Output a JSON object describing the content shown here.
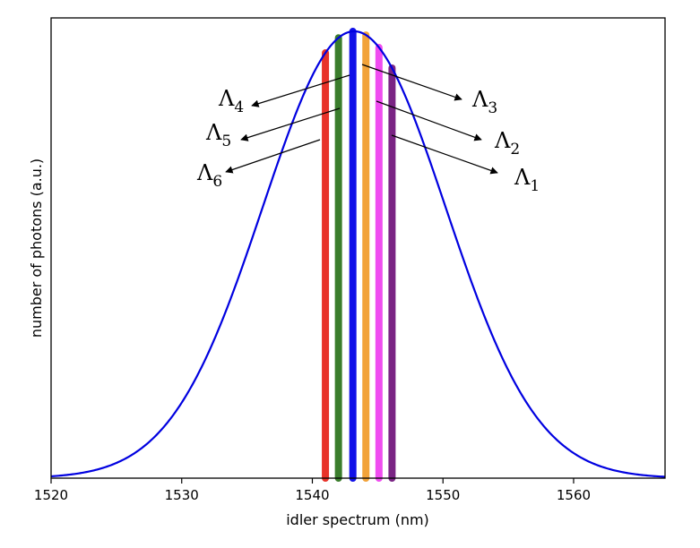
{
  "chart_data": {
    "type": "line",
    "xlabel": "idler spectrum (nm)",
    "ylabel": "number of photons (a.u.)",
    "xlim": [
      1520,
      1567
    ],
    "ylim": [
      0,
      1.03
    ],
    "x_ticks": [
      1520,
      1530,
      1540,
      1550,
      1560
    ],
    "y_ticks_shown": false,
    "grid": false,
    "curve": {
      "shape": "gaussian",
      "center": 1543.2,
      "sigma": 7.0,
      "peak": 1.0,
      "color": "#0000e0"
    },
    "series": [
      {
        "x": [
          1520.0,
          1522.0,
          1524.0,
          1526.0,
          1528.0,
          1530.0,
          1532.0,
          1534.0,
          1536.0,
          1538.0,
          1540.0,
          1542.0,
          1543.2,
          1544.0,
          1546.0,
          1548.0,
          1550.0,
          1552.0,
          1554.0,
          1556.0,
          1558.0,
          1560.0,
          1562.0,
          1564.0,
          1567.0
        ],
        "y": [
          0.004,
          0.01,
          0.025,
          0.054,
          0.105,
          0.185,
          0.297,
          0.436,
          0.592,
          0.743,
          0.901,
          0.985,
          1.0,
          0.993,
          0.923,
          0.79,
          0.624,
          0.454,
          0.304,
          0.187,
          0.106,
          0.056,
          0.027,
          0.012,
          0.003
        ]
      }
    ],
    "bands": [
      {
        "name": "Λ6",
        "x": 1541.0,
        "color": "#e8332a"
      },
      {
        "name": "Λ5",
        "x": 1542.0,
        "color": "#3a7d2c"
      },
      {
        "name": "Λ4",
        "x": 1543.1,
        "color": "#1010e8"
      },
      {
        "name": "Λ3",
        "x": 1544.1,
        "color": "#f2a33a"
      },
      {
        "name": "Λ2",
        "x": 1545.1,
        "color": "#f04cf0"
      },
      {
        "name": "Λ1",
        "x": 1546.1,
        "color": "#7a2484"
      }
    ],
    "annotations": [
      {
        "sym": "Λ",
        "sub": "4",
        "side": "left"
      },
      {
        "sym": "Λ",
        "sub": "5",
        "side": "left"
      },
      {
        "sym": "Λ",
        "sub": "6",
        "side": "left"
      },
      {
        "sym": "Λ",
        "sub": "3",
        "side": "right"
      },
      {
        "sym": "Λ",
        "sub": "2",
        "side": "right"
      },
      {
        "sym": "Λ",
        "sub": "1",
        "side": "right"
      }
    ]
  }
}
